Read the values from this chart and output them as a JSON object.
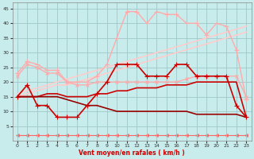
{
  "background_color": "#c8ecec",
  "grid_color": "#a0c8c8",
  "xlabel": "Vent moyen/en rafales ( km/h )",
  "xlim": [
    -0.5,
    23.5
  ],
  "ylim": [
    0,
    47
  ],
  "yticks": [
    5,
    10,
    15,
    20,
    25,
    30,
    35,
    40,
    45
  ],
  "xticks": [
    0,
    1,
    2,
    3,
    4,
    5,
    6,
    7,
    8,
    9,
    10,
    11,
    12,
    13,
    14,
    15,
    16,
    17,
    18,
    19,
    20,
    21,
    22,
    23
  ],
  "lines": [
    {
      "x": [
        0,
        1,
        2,
        3,
        4,
        5,
        6,
        7,
        8,
        9,
        10,
        11,
        12,
        13,
        14,
        15,
        16,
        17,
        18,
        19,
        20,
        21,
        22,
        23
      ],
      "y": [
        22,
        26,
        25,
        23,
        23,
        20,
        19,
        19,
        20,
        20,
        20,
        20,
        20,
        20,
        20,
        20,
        20,
        21,
        22,
        22,
        22,
        22,
        22,
        15
      ],
      "color": "#ffaaaa",
      "lw": 1.0,
      "marker": "x",
      "ms": 3,
      "zorder": 4
    },
    {
      "x": [
        0,
        1,
        2,
        3,
        4,
        5,
        6,
        7,
        8,
        9,
        10,
        11,
        12,
        13,
        14,
        15,
        16,
        17,
        18,
        19,
        20,
        21,
        22,
        23
      ],
      "y": [
        23,
        27,
        26,
        24,
        24,
        20,
        20,
        20,
        22,
        26,
        35,
        44,
        44,
        40,
        44,
        43,
        43,
        40,
        40,
        36,
        40,
        39,
        31,
        14
      ],
      "color": "#ffaaaa",
      "lw": 1.0,
      "marker": "+",
      "ms": 4,
      "zorder": 4
    },
    {
      "x": [
        0,
        1,
        2,
        3,
        4,
        5,
        6,
        7,
        8,
        9,
        10,
        11,
        12,
        13,
        14,
        15,
        16,
        17,
        18,
        19,
        20,
        21,
        22,
        23
      ],
      "y": [
        16,
        17,
        18,
        19,
        20,
        21,
        22,
        23,
        24,
        25,
        26,
        27,
        28,
        29,
        30,
        31,
        32,
        33,
        34,
        35,
        36,
        37,
        38,
        39
      ],
      "color": "#ffcccc",
      "lw": 1.2,
      "marker": null,
      "ms": 0,
      "zorder": 2
    },
    {
      "x": [
        0,
        1,
        2,
        3,
        4,
        5,
        6,
        7,
        8,
        9,
        10,
        11,
        12,
        13,
        14,
        15,
        16,
        17,
        18,
        19,
        20,
        21,
        22,
        23
      ],
      "y": [
        15,
        16,
        17,
        18,
        19,
        19,
        20,
        21,
        22,
        23,
        24,
        25,
        26,
        27,
        28,
        29,
        30,
        31,
        32,
        33,
        34,
        35,
        36,
        37
      ],
      "color": "#ffcccc",
      "lw": 1.2,
      "marker": null,
      "ms": 0,
      "zorder": 2
    },
    {
      "x": [
        0,
        1,
        2,
        3,
        4,
        5,
        6,
        7,
        8,
        9,
        10,
        11,
        12,
        13,
        14,
        15,
        16,
        17,
        18,
        19,
        20,
        21,
        22,
        23
      ],
      "y": [
        15,
        19,
        12,
        12,
        8,
        8,
        8,
        12,
        16,
        20,
        26,
        26,
        26,
        22,
        22,
        22,
        26,
        26,
        22,
        22,
        22,
        22,
        12,
        8
      ],
      "color": "#cc0000",
      "lw": 1.2,
      "marker": "+",
      "ms": 4,
      "zorder": 5
    },
    {
      "x": [
        0,
        1,
        2,
        3,
        4,
        5,
        6,
        7,
        8,
        9,
        10,
        11,
        12,
        13,
        14,
        15,
        16,
        17,
        18,
        19,
        20,
        21,
        22,
        23
      ],
      "y": [
        15,
        15,
        15,
        16,
        16,
        15,
        15,
        15,
        16,
        16,
        17,
        17,
        18,
        18,
        18,
        19,
        19,
        19,
        20,
        20,
        20,
        20,
        20,
        8
      ],
      "color": "#cc0000",
      "lw": 1.2,
      "marker": null,
      "ms": 0,
      "zorder": 3
    },
    {
      "x": [
        0,
        1,
        2,
        3,
        4,
        5,
        6,
        7,
        8,
        9,
        10,
        11,
        12,
        13,
        14,
        15,
        16,
        17,
        18,
        19,
        20,
        21,
        22,
        23
      ],
      "y": [
        15,
        15,
        15,
        15,
        15,
        14,
        13,
        12,
        12,
        11,
        10,
        10,
        10,
        10,
        10,
        10,
        10,
        10,
        9,
        9,
        9,
        9,
        9,
        8
      ],
      "color": "#990000",
      "lw": 1.2,
      "marker": null,
      "ms": 0,
      "zorder": 3
    },
    {
      "x": [
        0,
        1,
        2,
        3,
        4,
        5,
        6,
        7,
        8,
        9,
        10,
        11,
        12,
        13,
        14,
        15,
        16,
        17,
        18,
        19,
        20,
        21,
        22,
        23
      ],
      "y": [
        2,
        2,
        2,
        2,
        2,
        2,
        2,
        2,
        2,
        2,
        2,
        2,
        2,
        2,
        2,
        2,
        2,
        2,
        2,
        2,
        2,
        2,
        2,
        2
      ],
      "color": "#ff6666",
      "lw": 0.8,
      "marker": "<",
      "ms": 2.5,
      "zorder": 1
    }
  ]
}
